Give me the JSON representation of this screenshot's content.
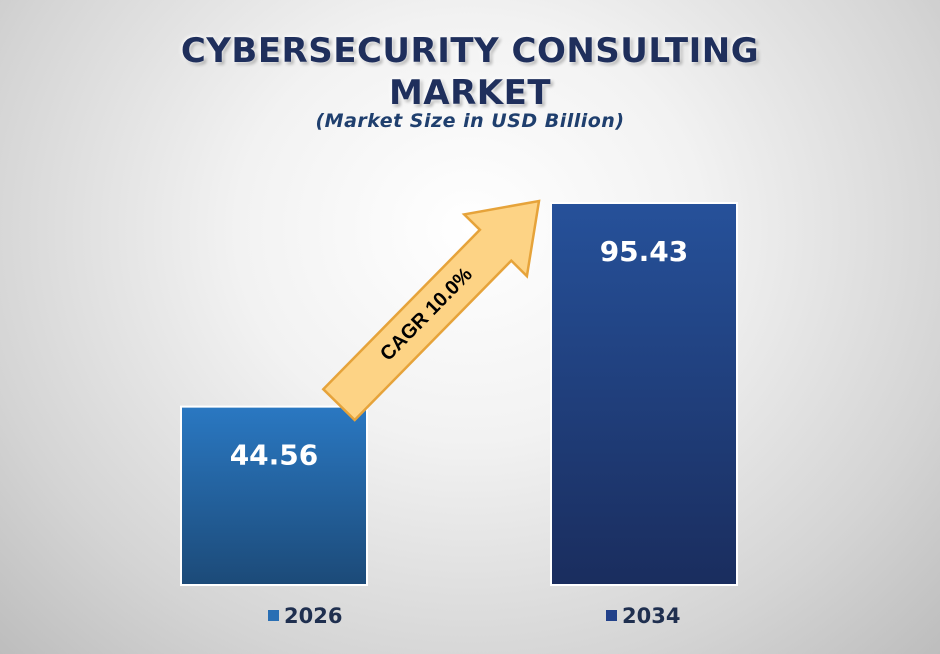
{
  "chart_data": {
    "type": "bar",
    "title_line1": "CYBERSECURITY CONSULTING",
    "title_line2": "MARKET",
    "subtitle": "(Market Size in USD Billion)",
    "categories": [
      "2026",
      "2034"
    ],
    "values": [
      44.56,
      95.43
    ],
    "value_labels": [
      "44.56",
      "95.43"
    ],
    "bar_colors": [
      [
        "#2a78c2",
        "#1c4a78"
      ],
      [
        "#26519a",
        "#1a2d5e"
      ]
    ],
    "legend_colors": [
      "#2a6fb4",
      "#22418a"
    ],
    "annotation": "CAGR 10.0%",
    "ylim": [
      0,
      95.43
    ],
    "grid": false,
    "legend_position": "bottom"
  }
}
